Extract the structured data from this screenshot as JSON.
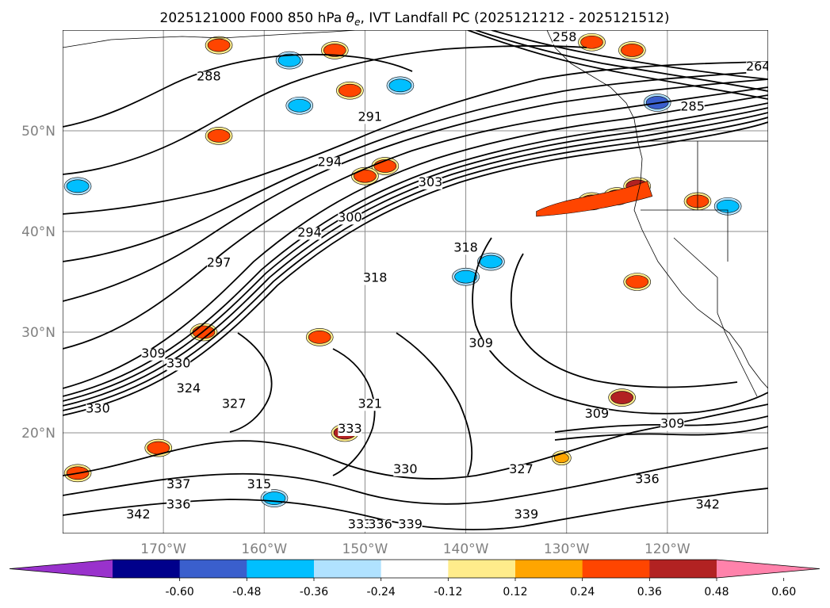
{
  "chart_data": {
    "type": "contour-map",
    "title_prefix": "2025121000 F000 850 hPa ",
    "title_symbol": "θ",
    "title_subscript": "e",
    "title_suffix": ", IVT Landfall PC (2025121212 - 2025121512)",
    "projection": "lat-lon",
    "lon_range": [
      -180,
      -110
    ],
    "lat_range": [
      10,
      60
    ],
    "grid": true,
    "lat_ticks": [
      {
        "value": 50,
        "label": "50°N"
      },
      {
        "value": 40,
        "label": "40°N"
      },
      {
        "value": 30,
        "label": "30°N"
      },
      {
        "value": 20,
        "label": "20°N"
      }
    ],
    "lon_ticks": [
      {
        "value": -170,
        "label": "170°W"
      },
      {
        "value": -160,
        "label": "160°W"
      },
      {
        "value": -150,
        "label": "150°W"
      },
      {
        "value": -140,
        "label": "140°W"
      },
      {
        "value": -130,
        "label": "130°W"
      },
      {
        "value": -120,
        "label": "120°W"
      }
    ],
    "contour_field": "850 hPa theta-e (K)",
    "contour_labels": [
      {
        "text": "258",
        "lon": -130.2,
        "lat": 58.9
      },
      {
        "text": "264",
        "lon": -111.0,
        "lat": 56.0
      },
      {
        "text": "285",
        "lon": -117.5,
        "lat": 52.0
      },
      {
        "text": "288",
        "lon": -165.5,
        "lat": 55.0
      },
      {
        "text": "291",
        "lon": -149.5,
        "lat": 51.0
      },
      {
        "text": "294",
        "lon": -153.5,
        "lat": 46.5
      },
      {
        "text": "294",
        "lon": -155.5,
        "lat": 39.5
      },
      {
        "text": "300",
        "lon": -151.5,
        "lat": 41.0
      },
      {
        "text": "303",
        "lon": -143.5,
        "lat": 44.5
      },
      {
        "text": "297",
        "lon": -164.5,
        "lat": 36.5
      },
      {
        "text": "318",
        "lon": -149.0,
        "lat": 35.0
      },
      {
        "text": "318",
        "lon": -140.0,
        "lat": 38.0
      },
      {
        "text": "309",
        "lon": -138.5,
        "lat": 28.5
      },
      {
        "text": "309",
        "lon": -171.0,
        "lat": 27.5
      },
      {
        "text": "309",
        "lon": -127.0,
        "lat": 21.5
      },
      {
        "text": "309",
        "lon": -119.5,
        "lat": 20.5
      },
      {
        "text": "330",
        "lon": -168.5,
        "lat": 26.5
      },
      {
        "text": "330",
        "lon": -176.5,
        "lat": 22.0
      },
      {
        "text": "330",
        "lon": -146.0,
        "lat": 16.0
      },
      {
        "text": "324",
        "lon": -167.5,
        "lat": 24.0
      },
      {
        "text": "327",
        "lon": -163.0,
        "lat": 22.5
      },
      {
        "text": "327",
        "lon": -134.5,
        "lat": 16.0
      },
      {
        "text": "321",
        "lon": -149.5,
        "lat": 22.5
      },
      {
        "text": "333",
        "lon": -151.5,
        "lat": 20.0
      },
      {
        "text": "333",
        "lon": -150.5,
        "lat": 10.5
      },
      {
        "text": "336",
        "lon": -148.5,
        "lat": 10.5
      },
      {
        "text": "336",
        "lon": -122.0,
        "lat": 15.0
      },
      {
        "text": "336",
        "lon": -168.5,
        "lat": 12.5
      },
      {
        "text": "337",
        "lon": -168.5,
        "lat": 14.5
      },
      {
        "text": "315",
        "lon": -160.5,
        "lat": 14.5
      },
      {
        "text": "339",
        "lon": -134.0,
        "lat": 11.5
      },
      {
        "text": "339",
        "lon": -145.5,
        "lat": 10.5
      },
      {
        "text": "342",
        "lon": -172.5,
        "lat": 11.5
      },
      {
        "text": "342",
        "lon": -116.0,
        "lat": 12.5
      }
    ],
    "shaded_field": "IVT Landfall PC",
    "colorbar": {
      "extend": "both",
      "ticks": [
        "-0.60",
        "-0.48",
        "-0.36",
        "-0.24",
        "-0.12",
        "0.12",
        "0.24",
        "0.36",
        "0.48",
        "0.60"
      ],
      "bins": [
        {
          "range": "< -0.60",
          "color": "#9932CC"
        },
        {
          "range": "-0.60 to -0.48",
          "color": "#00008B"
        },
        {
          "range": "-0.48 to -0.36",
          "color": "#3A5FCD"
        },
        {
          "range": "-0.36 to -0.24",
          "color": "#00BFFF"
        },
        {
          "range": "-0.24 to -0.12",
          "color": "#B0E2FF"
        },
        {
          "range": "-0.12 to 0.12",
          "color": "#FFFFFF"
        },
        {
          "range": "0.12 to 0.24",
          "color": "#FFEC8B"
        },
        {
          "range": "0.24 to 0.36",
          "color": "#FFA500"
        },
        {
          "range": "0.36 to 0.48",
          "color": "#FF4500"
        },
        {
          "range": "0.48 to 0.60",
          "color": "#B22222"
        },
        {
          "range": "> 0.60",
          "color": "#FF82AB"
        }
      ]
    },
    "shaded_features": [
      {
        "lon": -127.5,
        "lat": 43.0,
        "value": 0.36,
        "description": "elongated band west of Oregon"
      },
      {
        "lon": -125.0,
        "lat": 43.5,
        "value": 0.48
      },
      {
        "lon": -123.0,
        "lat": 44.5,
        "value": 0.48
      },
      {
        "lon": -123.5,
        "lat": 58.0,
        "value": 0.36
      },
      {
        "lon": -127.5,
        "lat": 58.8,
        "value": 0.36
      },
      {
        "lon": -124.5,
        "lat": 23.5,
        "value": 0.48
      },
      {
        "lon": -123.0,
        "lat": 35.0,
        "value": 0.36
      },
      {
        "lon": -117.0,
        "lat": 43.0,
        "value": 0.36
      },
      {
        "lon": -114.0,
        "lat": 42.5,
        "value": -0.36
      },
      {
        "lon": -121.0,
        "lat": 52.8,
        "value": -0.48
      },
      {
        "lon": -164.5,
        "lat": 49.5,
        "value": 0.36
      },
      {
        "lon": -151.5,
        "lat": 54.0,
        "value": 0.36
      },
      {
        "lon": -146.5,
        "lat": 54.5,
        "value": -0.36
      },
      {
        "lon": -156.5,
        "lat": 52.5,
        "value": -0.36
      },
      {
        "lon": -148.0,
        "lat": 46.5,
        "value": 0.36
      },
      {
        "lon": -150.0,
        "lat": 45.5,
        "value": 0.36
      },
      {
        "lon": -153.0,
        "lat": 58.0,
        "value": 0.36
      },
      {
        "lon": -164.5,
        "lat": 58.5,
        "value": 0.36
      },
      {
        "lon": -157.5,
        "lat": 57.0,
        "value": -0.36
      },
      {
        "lon": -178.5,
        "lat": 44.5,
        "value": -0.36
      },
      {
        "lon": -166.0,
        "lat": 30.0,
        "value": 0.36
      },
      {
        "lon": -154.5,
        "lat": 29.5,
        "value": 0.36
      },
      {
        "lon": -152.0,
        "lat": 20.0,
        "value": 0.48
      },
      {
        "lon": -140.0,
        "lat": 35.5,
        "value": -0.36
      },
      {
        "lon": -137.5,
        "lat": 37.0,
        "value": -0.36
      },
      {
        "lon": -159.0,
        "lat": 13.5,
        "value": -0.36
      },
      {
        "lon": -178.5,
        "lat": 16.0,
        "value": 0.36
      },
      {
        "lon": -170.5,
        "lat": 18.5,
        "value": 0.36
      },
      {
        "lon": -130.5,
        "lat": 17.5,
        "value": 0.24
      }
    ]
  }
}
